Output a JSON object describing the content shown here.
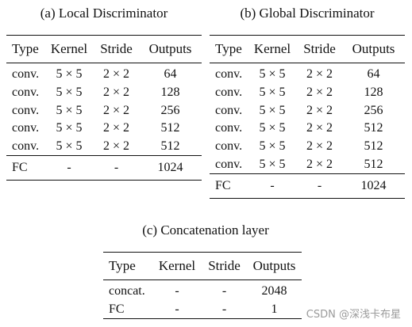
{
  "tables": [
    {
      "caption": "(a) Local Discriminator",
      "headers": [
        "Type",
        "Kernel",
        "Stride",
        "Outputs"
      ],
      "rows": [
        [
          "conv.",
          "5 × 5",
          "2 × 2",
          "64"
        ],
        [
          "conv.",
          "5 × 5",
          "2 × 2",
          "128"
        ],
        [
          "conv.",
          "5 × 5",
          "2 × 2",
          "256"
        ],
        [
          "conv.",
          "5 × 5",
          "2 × 2",
          "512"
        ],
        [
          "conv.",
          "5 × 5",
          "2 × 2",
          "512"
        ]
      ],
      "footer_rows": [
        [
          "FC",
          "-",
          "-",
          "1024"
        ]
      ]
    },
    {
      "caption": "(b) Global Discriminator",
      "headers": [
        "Type",
        "Kernel",
        "Stride",
        "Outputs"
      ],
      "rows": [
        [
          "conv.",
          "5 × 5",
          "2 × 2",
          "64"
        ],
        [
          "conv.",
          "5 × 5",
          "2 × 2",
          "128"
        ],
        [
          "conv.",
          "5 × 5",
          "2 × 2",
          "256"
        ],
        [
          "conv.",
          "5 × 5",
          "2 × 2",
          "512"
        ],
        [
          "conv.",
          "5 × 5",
          "2 × 2",
          "512"
        ],
        [
          "conv.",
          "5 × 5",
          "2 × 2",
          "512"
        ]
      ],
      "footer_rows": [
        [
          "FC",
          "-",
          "-",
          "1024"
        ]
      ]
    },
    {
      "caption": "(c) Concatenation layer",
      "headers": [
        "Type",
        "Kernel",
        "Stride",
        "Outputs"
      ],
      "rows": [
        [
          "concat.",
          "-",
          "-",
          "2048"
        ],
        [
          "FC",
          "-",
          "-",
          "1"
        ]
      ],
      "footer_rows": []
    }
  ],
  "watermark": "CSDN @深浅卡布星"
}
